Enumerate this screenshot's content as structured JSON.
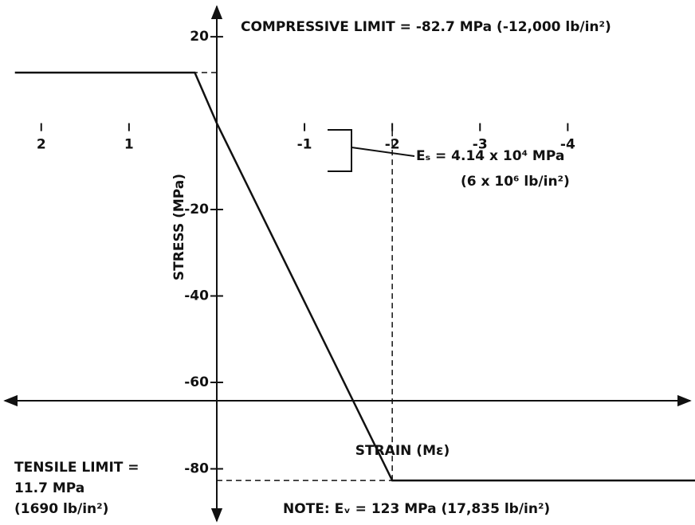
{
  "chart_data": {
    "type": "line",
    "y_label": "STRESS (MPa)",
    "x_label": "STRAIN (Mε)",
    "xlim": [
      2.47,
      -5.45
    ],
    "ylim": [
      28.5,
      -93
    ],
    "xticks": [
      2,
      1,
      -1,
      -2,
      -3,
      -4
    ],
    "yticks": [
      -80,
      -60,
      -40,
      -20,
      20
    ],
    "color": "#111111",
    "series": [
      {
        "x": [
          2.3,
          0.25,
          0,
          -2.0,
          -5.45
        ],
        "values": [
          11.7,
          11.7,
          0,
          -82.7,
          -82.7
        ]
      }
    ],
    "annotations": {
      "compressive": "COMPRESSIVE LIMIT = -82.7 MPa (-12,000 lb/in²)",
      "modulus_1": "Eₛ = 4.14 x 10⁴ MPa",
      "modulus_2": "(6 x 10⁶ lb/in²)",
      "tensile_1": "TENSILE LIMIT =",
      "tensile_2": "11.7 MPa",
      "tensile_3": "(1690 lb/in²)",
      "note": "NOTE:  Eᵥ = 123 MPa (17,835 lb/in²)"
    }
  }
}
